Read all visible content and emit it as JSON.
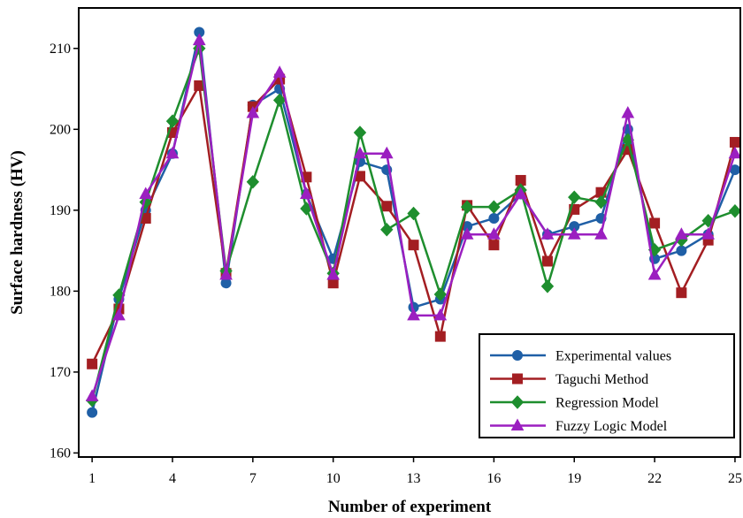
{
  "chart_data": {
    "type": "line",
    "title": "",
    "xlabel": "Number of experiment",
    "ylabel": "Surface hardness (HV)",
    "xlim": [
      0.5,
      25.2
    ],
    "ylim": [
      159.5,
      215
    ],
    "x_ticks": [
      1,
      4,
      7,
      10,
      13,
      16,
      19,
      22,
      25
    ],
    "y_ticks": [
      160,
      170,
      180,
      190,
      200,
      210
    ],
    "grid": false,
    "legend": "bottom-right",
    "x": [
      1,
      2,
      3,
      4,
      5,
      6,
      7,
      8,
      9,
      10,
      11,
      12,
      13,
      14,
      15,
      16,
      17,
      18,
      19,
      20,
      21,
      22,
      23,
      24,
      25
    ],
    "series": [
      {
        "name": "Experimental values",
        "color": "#1f5fa6",
        "marker": "circle",
        "values": [
          165,
          179,
          190,
          197,
          212,
          181,
          203,
          205,
          192,
          184,
          196,
          195,
          178,
          179,
          188,
          189,
          192,
          187,
          188,
          189,
          200,
          184,
          185,
          187,
          195
        ]
      },
      {
        "name": "Taguchi Method",
        "color": "#a31e22",
        "marker": "square",
        "values": [
          171,
          177.8,
          189,
          199.6,
          205.4,
          182.2,
          202.8,
          206.2,
          194.1,
          181,
          194.2,
          190.5,
          185.7,
          174.4,
          190.6,
          185.7,
          193.7,
          183.7,
          190.1,
          192.2,
          197.5,
          188.4,
          179.8,
          186.3,
          198.4
        ]
      },
      {
        "name": "Regression Model",
        "color": "#1e8e2e",
        "marker": "diamond",
        "values": [
          166.5,
          179.5,
          191,
          201,
          210,
          182.5,
          193.5,
          203.6,
          190.2,
          182.2,
          199.6,
          187.6,
          189.6,
          179.6,
          190.4,
          190.4,
          192.5,
          180.6,
          191.6,
          191,
          198.7,
          185.1,
          186.3,
          188.7,
          189.9
        ]
      },
      {
        "name": "Fuzzy Logic Model",
        "color": "#9b1fc0",
        "marker": "triangle",
        "values": [
          167,
          177,
          192,
          197,
          211,
          182,
          202,
          207,
          192,
          182,
          197,
          197,
          177,
          177,
          187,
          187,
          192,
          187,
          187,
          187,
          202,
          182,
          187,
          187,
          197
        ]
      }
    ]
  }
}
